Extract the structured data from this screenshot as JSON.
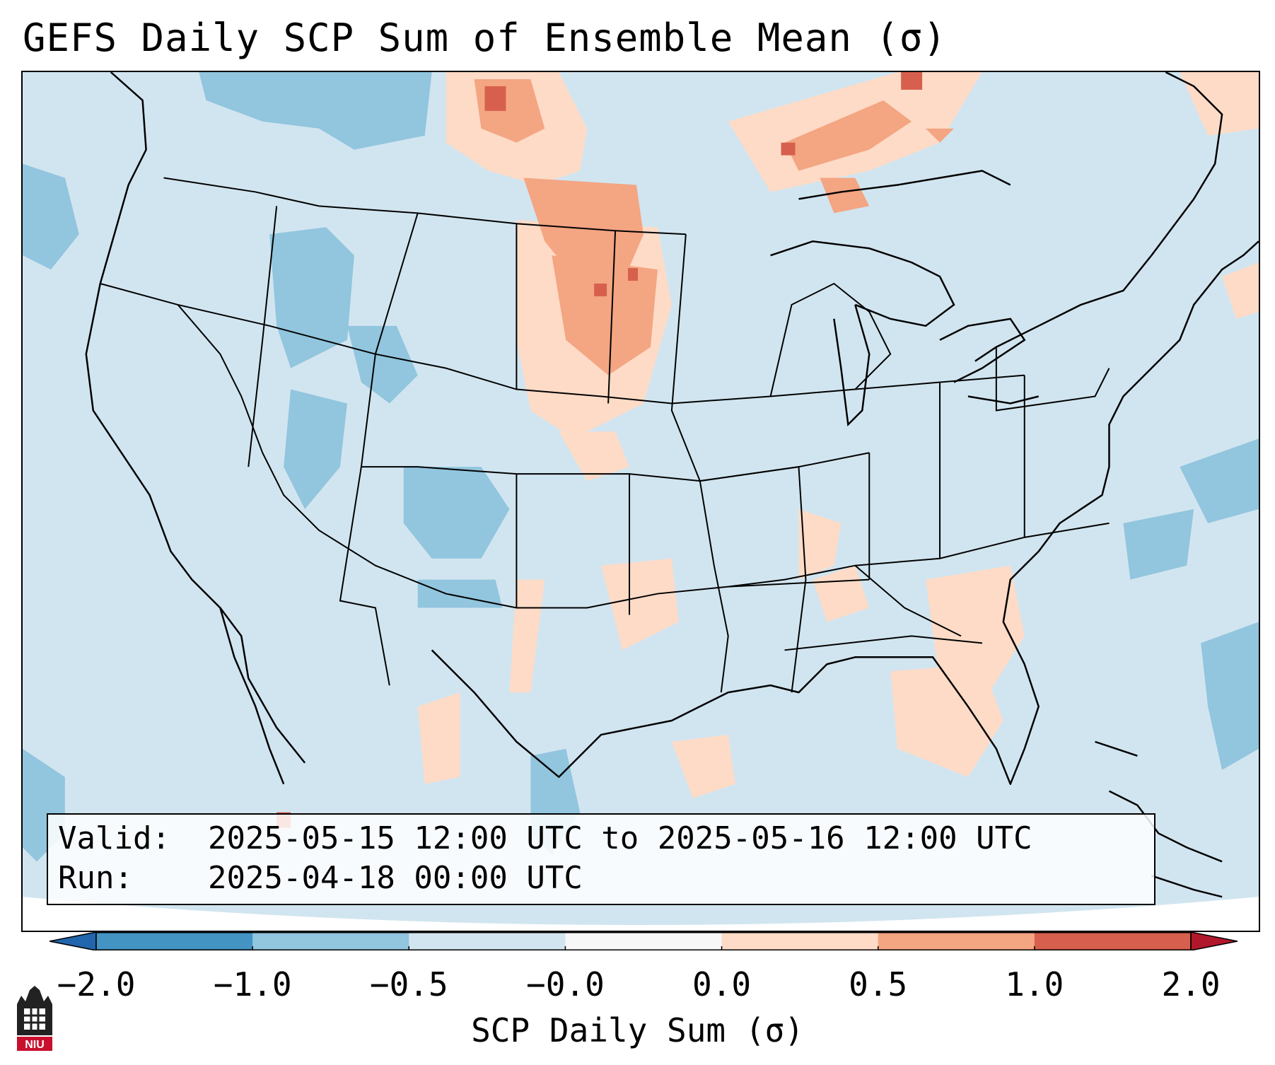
{
  "title": "GEFS Daily SCP Sum of Ensemble Mean (σ)",
  "info_box": {
    "valid_label": "Valid:",
    "valid_value": "2025-05-15 12:00 UTC to 2025-05-16 12:00 UTC",
    "run_label": "Run:",
    "run_value": "2025-04-18 00:00 UTC"
  },
  "colorbar": {
    "label": "SCP Daily Sum (σ)",
    "ticks": [
      "−2.0",
      "−1.0",
      "−0.5",
      "−0.0",
      "0.0",
      "0.5",
      "1.0",
      "2.0"
    ],
    "bins": [
      {
        "range": "< -2.0",
        "color": "#2166ac"
      },
      {
        "range": "-2.0 to -1.0",
        "color": "#4393c3"
      },
      {
        "range": "-1.0 to -0.5",
        "color": "#92c5de"
      },
      {
        "range": "-0.5 to -0.0",
        "color": "#d1e5f0"
      },
      {
        "range": "-0.0 to 0.0",
        "color": "#f7f7f7"
      },
      {
        "range": "0.0 to 0.5",
        "color": "#fddbc7"
      },
      {
        "range": "0.5 to 1.0",
        "color": "#f4a582"
      },
      {
        "range": "1.0 to 2.0",
        "color": "#d6604d"
      },
      {
        "range": "> 2.0",
        "color": "#b2182b"
      }
    ]
  },
  "map": {
    "region": "Continental United States",
    "background_color": "#d1e5f0",
    "positive_colors": [
      "#fddbc7",
      "#f4a582",
      "#d6604d"
    ],
    "negative_color": "#92c5de"
  },
  "logo": {
    "name": "NIU",
    "text": "NIU"
  }
}
